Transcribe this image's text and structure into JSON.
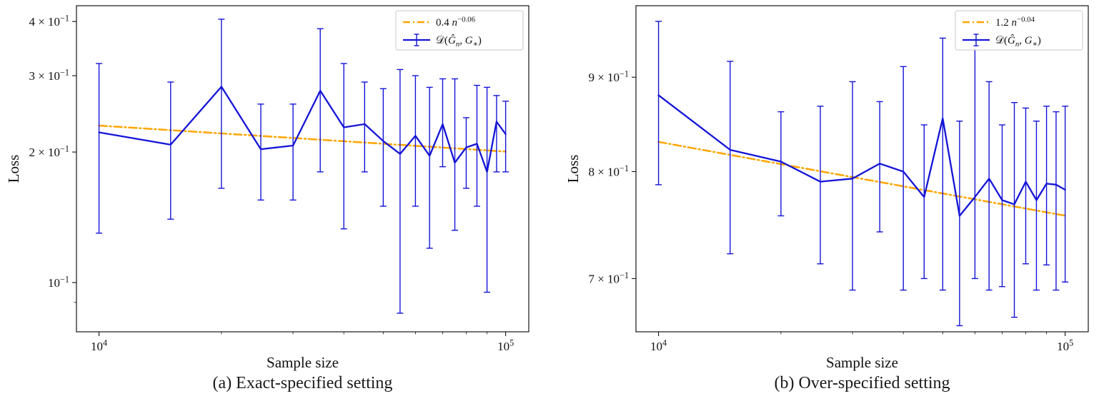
{
  "page": {
    "background": "#ffffff"
  },
  "chart_data": [
    {
      "type": "line",
      "caption": "(a) Exact-specified setting",
      "xlabel": "Sample size",
      "ylabel": "Loss",
      "xscale": "log",
      "yscale": "log",
      "xlim": [
        8800,
        114000
      ],
      "ylim": [
        0.077,
        0.435
      ],
      "grid": false,
      "legend_position": "top-right",
      "xticks": [
        {
          "v": 10000,
          "label": "10^4",
          "parts": [
            {
              "t": "10"
            },
            {
              "t": "4",
              "sup": true
            }
          ]
        },
        {
          "v": 100000,
          "label": "10^5",
          "parts": [
            {
              "t": "10"
            },
            {
              "t": "5",
              "sup": true
            }
          ]
        }
      ],
      "xminor": [
        20000,
        30000,
        40000,
        50000,
        60000,
        70000,
        80000,
        90000
      ],
      "yticks": [
        {
          "v": 0.4,
          "label": "4 × 10^-1",
          "parts": [
            {
              "t": "4 × 10"
            },
            {
              "t": "−1",
              "sup": true
            }
          ]
        },
        {
          "v": 0.3,
          "label": "3 × 10^-1",
          "parts": [
            {
              "t": "3 × 10"
            },
            {
              "t": "−1",
              "sup": true
            }
          ]
        },
        {
          "v": 0.2,
          "label": "2 × 10^-1",
          "parts": [
            {
              "t": "2 × 10"
            },
            {
              "t": "−1",
              "sup": true
            }
          ]
        },
        {
          "v": 0.1,
          "label": "10^-1",
          "parts": [
            {
              "t": "10"
            },
            {
              "t": "−1",
              "sup": true
            }
          ]
        }
      ],
      "yminor": [
        0.09
      ],
      "trend": {
        "coef": 0.4,
        "exp": -0.06,
        "color": "#FFA500",
        "style": "dashdot",
        "label": "0.4 n^-0.06",
        "label_parts": [
          {
            "t": "0.4 "
          },
          {
            "t": "n",
            "i": true
          },
          {
            "t": "−0.06",
            "sup": true
          }
        ]
      },
      "series": [
        {
          "name": "D(G_hat_n, G_*)",
          "label": "D(Ĝ_n, G_*)",
          "label_parts": [
            {
              "t": "𝒟("
            },
            {
              "t": "Ĝ",
              "i": true
            },
            {
              "t": "n",
              "sub": true,
              "i": true
            },
            {
              "t": ", "
            },
            {
              "t": "G",
              "i": true
            },
            {
              "t": "∗",
              "sub": true
            },
            {
              "t": ")"
            }
          ],
          "color": "#1414d8",
          "x": [
            10000,
            15000,
            20000,
            25000,
            30000,
            35000,
            40000,
            45000,
            50000,
            55000,
            60000,
            65000,
            70000,
            75000,
            80000,
            85000,
            90000,
            95000,
            100000
          ],
          "y": [
            0.222,
            0.208,
            0.283,
            0.203,
            0.207,
            0.277,
            0.228,
            0.232,
            0.212,
            0.198,
            0.218,
            0.196,
            0.232,
            0.189,
            0.205,
            0.209,
            0.18,
            0.235,
            0.22
          ],
          "err_low": [
            0.13,
            0.14,
            0.165,
            0.155,
            0.155,
            0.18,
            0.133,
            0.18,
            0.15,
            0.085,
            0.15,
            0.12,
            0.185,
            0.132,
            0.165,
            0.15,
            0.095,
            0.18,
            0.18
          ],
          "err_high": [
            0.32,
            0.29,
            0.405,
            0.258,
            0.258,
            0.385,
            0.32,
            0.29,
            0.28,
            0.31,
            0.3,
            0.282,
            0.295,
            0.295,
            0.24,
            0.285,
            0.282,
            0.27,
            0.262
          ]
        }
      ]
    },
    {
      "type": "line",
      "caption": "(b) Over-specified setting",
      "xlabel": "Sample size",
      "ylabel": "Loss",
      "xscale": "log",
      "yscale": "log",
      "xlim": [
        8800,
        114000
      ],
      "ylim": [
        0.655,
        0.984
      ],
      "grid": false,
      "legend_position": "top-right",
      "xticks": [
        {
          "v": 10000,
          "label": "10^4",
          "parts": [
            {
              "t": "10"
            },
            {
              "t": "4",
              "sup": true
            }
          ]
        },
        {
          "v": 100000,
          "label": "10^5",
          "parts": [
            {
              "t": "10"
            },
            {
              "t": "5",
              "sup": true
            }
          ]
        }
      ],
      "xminor": [
        20000,
        30000,
        40000,
        50000,
        60000,
        70000,
        80000,
        90000
      ],
      "yticks": [
        {
          "v": 0.9,
          "label": "9 × 10^-1",
          "parts": [
            {
              "t": "9 × 10"
            },
            {
              "t": "−1",
              "sup": true
            }
          ]
        },
        {
          "v": 0.8,
          "label": "8 × 10^-1",
          "parts": [
            {
              "t": "8 × 10"
            },
            {
              "t": "−1",
              "sup": true
            }
          ]
        },
        {
          "v": 0.7,
          "label": "7 × 10^-1",
          "parts": [
            {
              "t": "7 × 10"
            },
            {
              "t": "−1",
              "sup": true
            }
          ]
        }
      ],
      "yminor": [],
      "trend": {
        "coef": 1.2,
        "exp": -0.04,
        "color": "#FFA500",
        "style": "dashdot",
        "label": "1.2 n^-0.04",
        "label_parts": [
          {
            "t": "1.2 "
          },
          {
            "t": "n",
            "i": true
          },
          {
            "t": "−0.04",
            "sup": true
          }
        ]
      },
      "series": [
        {
          "name": "D(G_hat_n, G_*)",
          "label": "D(Ĝ_n, G_*)",
          "label_parts": [
            {
              "t": "𝒟("
            },
            {
              "t": "Ĝ",
              "i": true
            },
            {
              "t": "n",
              "sub": true,
              "i": true
            },
            {
              "t": ", "
            },
            {
              "t": "G",
              "i": true
            },
            {
              "t": "∗",
              "sub": true
            },
            {
              "t": ")"
            }
          ],
          "color": "#1414d8",
          "x": [
            10000,
            15000,
            20000,
            25000,
            30000,
            35000,
            40000,
            45000,
            50000,
            55000,
            60000,
            65000,
            70000,
            75000,
            80000,
            85000,
            90000,
            95000,
            100000
          ],
          "y": [
            0.88,
            0.822,
            0.81,
            0.79,
            0.793,
            0.808,
            0.8,
            0.775,
            0.855,
            0.757,
            0.775,
            0.793,
            0.772,
            0.768,
            0.79,
            0.772,
            0.788,
            0.787,
            0.782
          ],
          "err_low": [
            0.787,
            0.722,
            0.757,
            0.713,
            0.69,
            0.742,
            0.69,
            0.7,
            0.69,
            0.66,
            0.7,
            0.69,
            0.693,
            0.667,
            0.713,
            0.69,
            0.712,
            0.69,
            0.697
          ],
          "err_high": [
            0.965,
            0.918,
            0.862,
            0.868,
            0.895,
            0.873,
            0.912,
            0.848,
            0.945,
            0.852,
            0.935,
            0.895,
            0.848,
            0.872,
            0.866,
            0.852,
            0.868,
            0.862,
            0.868
          ]
        }
      ]
    }
  ]
}
